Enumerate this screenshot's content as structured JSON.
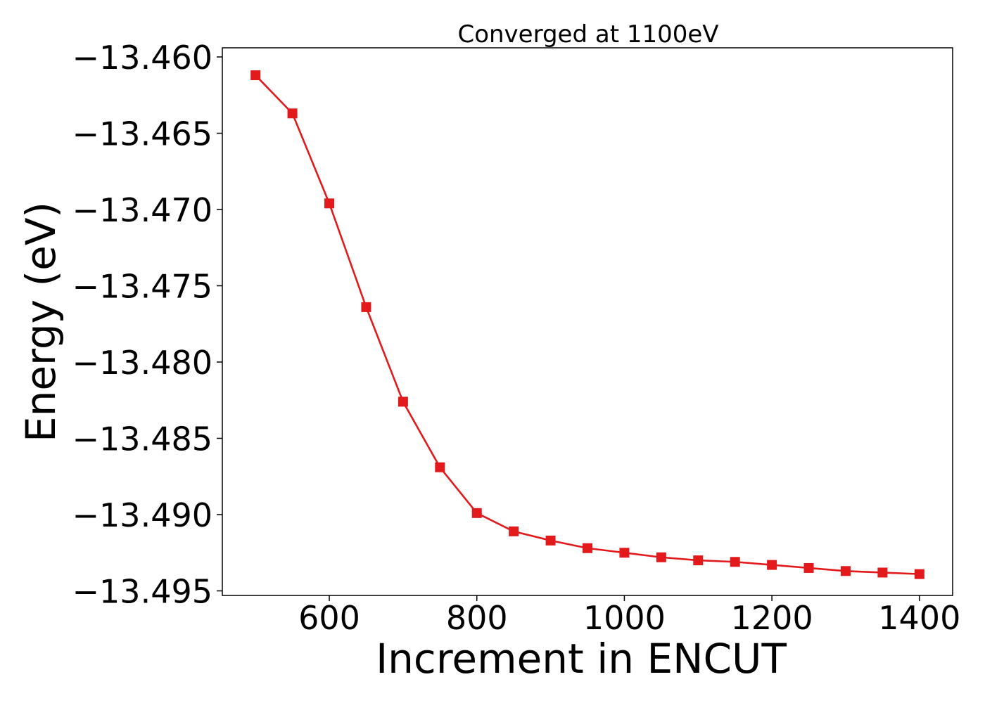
{
  "chart_data": {
    "type": "line",
    "title": "Converged at 1100eV",
    "xlabel": "Increment in ENCUT",
    "ylabel": "Energy (eV)",
    "xlim": [
      455,
      1445
    ],
    "ylim": [
      -13.4953,
      -13.4594
    ],
    "xticks": [
      600,
      800,
      1000,
      1200,
      1400
    ],
    "xtick_labels": [
      "600",
      "800",
      "1000",
      "1200",
      "1400"
    ],
    "yticks": [
      -13.46,
      -13.465,
      -13.47,
      -13.475,
      -13.48,
      -13.485,
      -13.49,
      -13.495
    ],
    "ytick_labels": [
      "−13.460",
      "−13.465",
      "−13.470",
      "−13.475",
      "−13.480",
      "−13.485",
      "−13.490",
      "−13.495"
    ],
    "grid": false,
    "series": [
      {
        "color": "#e31a1c",
        "marker": "square",
        "x": [
          500,
          550,
          600,
          650,
          700,
          750,
          800,
          850,
          900,
          950,
          1000,
          1050,
          1100,
          1150,
          1200,
          1250,
          1300,
          1350,
          1400
        ],
        "y": [
          -13.4612,
          -13.4637,
          -13.4696,
          -13.4764,
          -13.4826,
          -13.4869,
          -13.4899,
          -13.4911,
          -13.4917,
          -13.4922,
          -13.4925,
          -13.4928,
          -13.493,
          -13.4931,
          -13.4933,
          -13.4935,
          -13.4937,
          -13.4938,
          -13.4939
        ]
      }
    ]
  }
}
